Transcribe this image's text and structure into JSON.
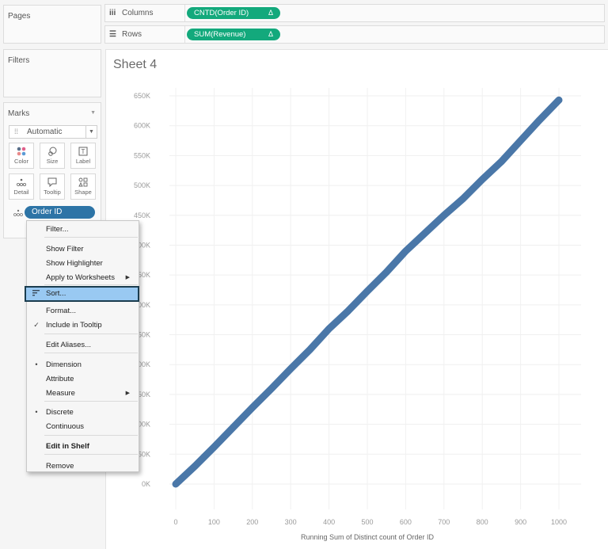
{
  "left_panel": {
    "pages_title": "Pages",
    "filters_title": "Filters",
    "marks": {
      "title": "Marks",
      "mark_type": "Automatic",
      "buttons": [
        {
          "label": "Color",
          "icon": "color-dots-icon"
        },
        {
          "label": "Size",
          "icon": "size-icon"
        },
        {
          "label": "Label",
          "icon": "label-icon"
        },
        {
          "label": "Detail",
          "icon": "detail-icon"
        },
        {
          "label": "Tooltip",
          "icon": "tooltip-icon"
        },
        {
          "label": "Shape",
          "icon": "shape-icon"
        }
      ],
      "detail_pill": "Order ID"
    }
  },
  "shelves": {
    "columns": {
      "label": "Columns",
      "icon": "columns-icon",
      "pill": "CNTD(Order ID)",
      "pill_badge": "Δ"
    },
    "rows": {
      "label": "Rows",
      "icon": "rows-icon",
      "pill": "SUM(Revenue)",
      "pill_badge": "Δ"
    }
  },
  "sheet": {
    "title": "Sheet 4"
  },
  "context_menu": {
    "items": [
      {
        "label": "Filter...",
        "mark": "",
        "arrow": false
      },
      {
        "label": "Show Filter",
        "mark": "",
        "arrow": false
      },
      {
        "label": "Show Highlighter",
        "mark": "",
        "arrow": false
      },
      {
        "label": "Apply to Worksheets",
        "mark": "",
        "arrow": true
      },
      {
        "label": "Sort...",
        "mark": "sort-icon",
        "arrow": false,
        "highlighted": true
      },
      {
        "label": "Format...",
        "mark": "",
        "arrow": false
      },
      {
        "label": "Include in Tooltip",
        "mark": "check",
        "arrow": false
      },
      {
        "label": "Edit Aliases...",
        "mark": "",
        "arrow": false
      },
      {
        "label": "Dimension",
        "mark": "bullet",
        "arrow": false
      },
      {
        "label": "Attribute",
        "mark": "",
        "arrow": false
      },
      {
        "label": "Measure",
        "mark": "",
        "arrow": true
      },
      {
        "label": "Discrete",
        "mark": "bullet",
        "arrow": false
      },
      {
        "label": "Continuous",
        "mark": "",
        "arrow": false
      },
      {
        "label": "Edit in Shelf",
        "mark": "",
        "arrow": false,
        "bold": true
      },
      {
        "label": "Remove",
        "mark": "",
        "arrow": false
      }
    ]
  },
  "colors": {
    "measure_pill": "#13a97c",
    "dimension_pill": "#2d74a6",
    "line": "#4a77a8",
    "menu_highlight": "#99c9f2"
  },
  "chart_data": {
    "type": "line",
    "title": "Sheet 4",
    "xlabel": "Running Sum of Distinct count of Order ID",
    "ylabel": "",
    "x_ticks": [
      "0",
      "100",
      "200",
      "300",
      "400",
      "500",
      "600",
      "700",
      "800",
      "900",
      "1000"
    ],
    "y_ticks": [
      "0K",
      "50K",
      "100K",
      "150K",
      "200K",
      "250K",
      "300K",
      "350K",
      "400K",
      "450K",
      "500K",
      "550K",
      "600K",
      "650K"
    ],
    "xlim": [
      0,
      1050
    ],
    "ylim": [
      0,
      650000
    ],
    "grid": true,
    "series": [
      {
        "name": "SUM(Revenue)",
        "x": [
          0,
          50,
          100,
          150,
          200,
          250,
          300,
          350,
          400,
          450,
          500,
          550,
          600,
          650,
          700,
          750,
          800,
          850,
          900,
          950,
          1000
        ],
        "y": [
          0,
          30000,
          62000,
          95000,
          128000,
          160000,
          193000,
          225000,
          260000,
          290000,
          323000,
          355000,
          390000,
          420000,
          450000,
          478000,
          510000,
          540000,
          575000,
          610000,
          643000
        ]
      }
    ]
  }
}
